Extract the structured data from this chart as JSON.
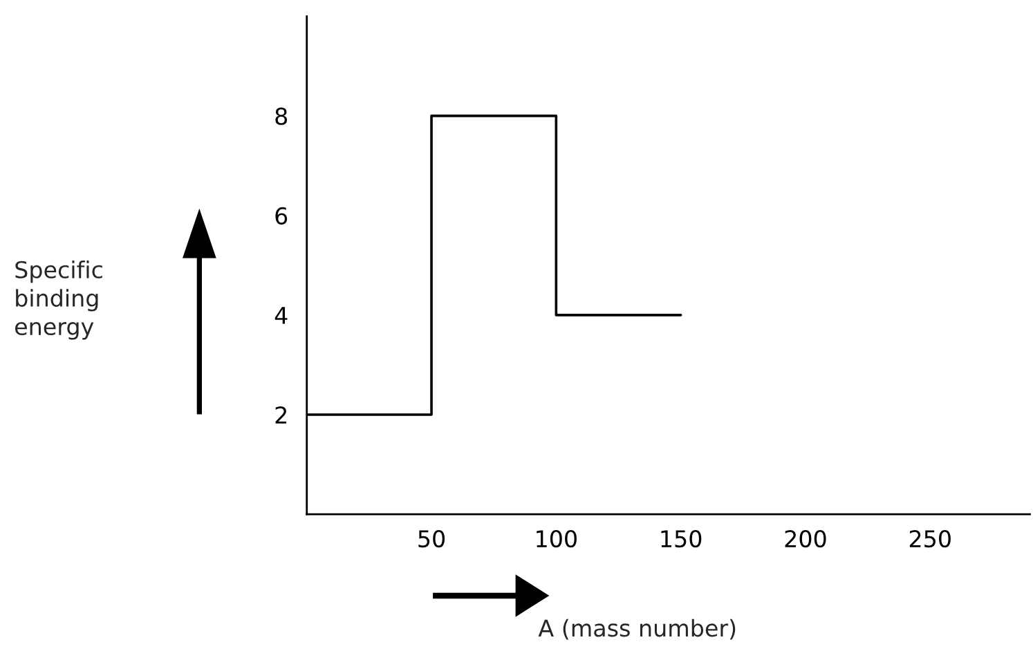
{
  "chart_data": {
    "type": "step",
    "xlabel": "A (mass number)",
    "annotations": [
      "Specific binding energy"
    ],
    "x": [
      0,
      50,
      100,
      150
    ],
    "series": [
      {
        "color": "#000000",
        "values": [
          2,
          8,
          4,
          4
        ]
      }
    ],
    "xlim": [
      0,
      290
    ],
    "ylim": [
      0,
      10
    ],
    "xticks": [
      50,
      100,
      150,
      200,
      250
    ],
    "yticks": [
      2,
      4,
      6,
      8
    ],
    "grid": false,
    "legend": false
  }
}
